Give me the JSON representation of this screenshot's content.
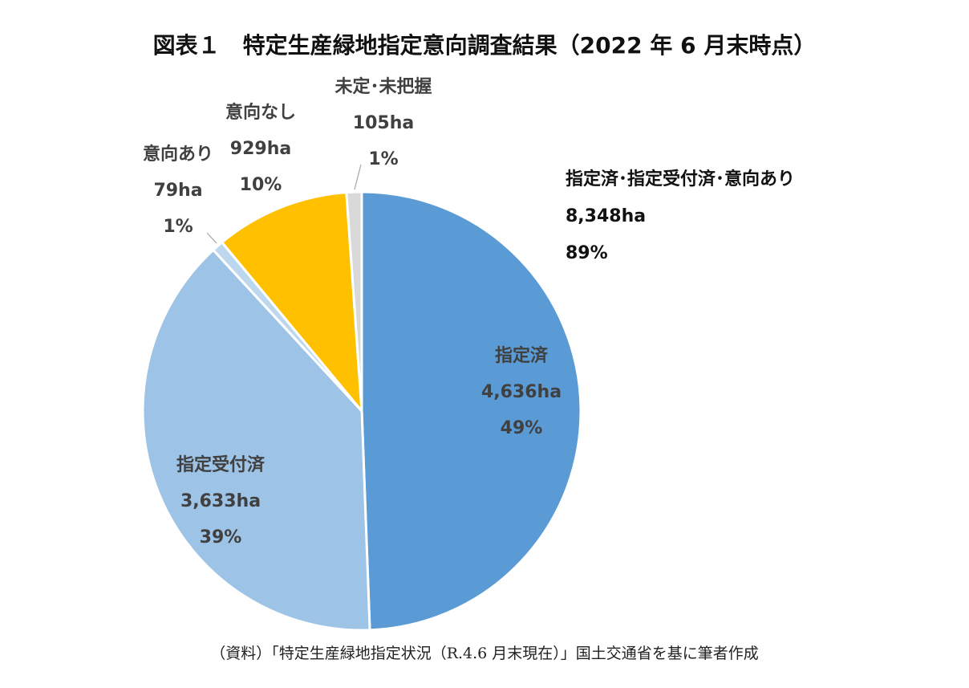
{
  "title": "図表１　特定生産緑地指定意向調査結果（2022 年 6 月末時点）",
  "source": "（資料）「特定生産緑地指定状況（R.4.6 月末現在）」国土交通省を基に筆者作成",
  "summary": {
    "label": "指定済･指定受付済･意向あり",
    "value": "8,348ha",
    "percent": "89%"
  },
  "chart_data": {
    "type": "pie",
    "title": "図表１　特定生産緑地指定意向調査結果（2022 年 6 月末時点）",
    "start": "12 o'clock, clockwise",
    "slices": [
      {
        "name": "指定済",
        "value": 4636,
        "value_label": "4,636ha",
        "percent_label": "49%",
        "color": "#5b9bd5"
      },
      {
        "name": "指定受付済",
        "value": 3633,
        "value_label": "3,633ha",
        "percent_label": "39%",
        "color": "#9dc3e6"
      },
      {
        "name": "意向あり",
        "value": 79,
        "value_label": "79ha",
        "percent_label": "1%",
        "color": "#bdd7ee"
      },
      {
        "name": "意向なし",
        "value": 929,
        "value_label": "929ha",
        "percent_label": "10%",
        "color": "#ffc000"
      },
      {
        "name": "未定･未把握",
        "value": 105,
        "value_label": "105ha",
        "percent_label": "1%",
        "color": "#d9d9d9"
      }
    ]
  }
}
